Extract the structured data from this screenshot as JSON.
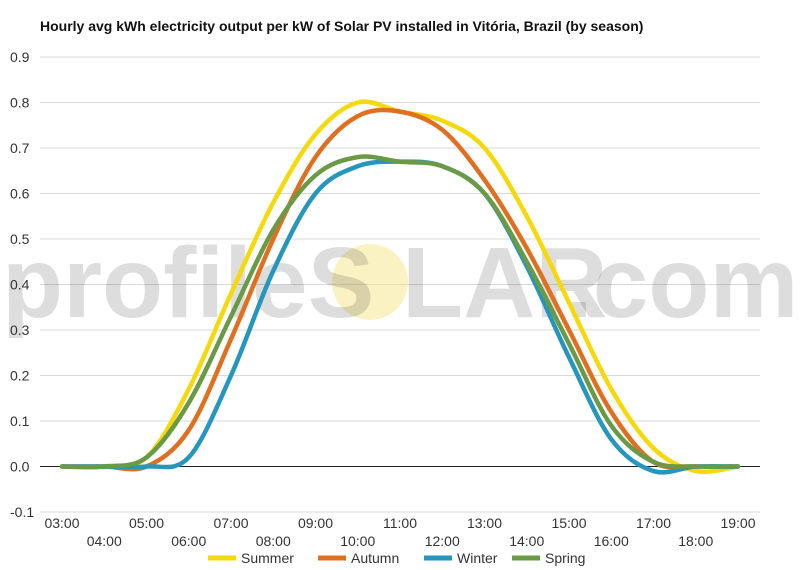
{
  "title": "Hourly avg kWh electricity output per kW of Solar PV installed in Vitória, Brazil (by season)",
  "watermark": {
    "left": "profileS",
    "middle": "LAR",
    "right": ".com"
  },
  "chart_data": {
    "type": "line",
    "x": [
      "03:00",
      "04:00",
      "05:00",
      "06:00",
      "07:00",
      "08:00",
      "09:00",
      "10:00",
      "11:00",
      "12:00",
      "13:00",
      "14:00",
      "15:00",
      "16:00",
      "17:00",
      "18:00",
      "19:00"
    ],
    "ylim": [
      -0.1,
      0.9
    ],
    "yticks": [
      "-0.1",
      "0.0",
      "0.1",
      "0.2",
      "0.3",
      "0.4",
      "0.5",
      "0.6",
      "0.7",
      "0.8",
      "0.9"
    ],
    "grid": true,
    "legend": "bottom",
    "series": [
      {
        "name": "Summer",
        "color": "#f5d90a",
        "values": [
          0.0,
          0.0,
          0.02,
          0.17,
          0.38,
          0.58,
          0.73,
          0.8,
          0.78,
          0.76,
          0.7,
          0.55,
          0.36,
          0.17,
          0.04,
          -0.01,
          0.0
        ]
      },
      {
        "name": "Autumn",
        "color": "#e07020",
        "values": [
          0.0,
          0.0,
          0.0,
          0.08,
          0.28,
          0.5,
          0.68,
          0.77,
          0.78,
          0.74,
          0.63,
          0.48,
          0.3,
          0.12,
          0.01,
          0.0,
          0.0
        ]
      },
      {
        "name": "Winter",
        "color": "#2596be",
        "values": [
          0.0,
          0.0,
          0.0,
          0.02,
          0.2,
          0.43,
          0.6,
          0.66,
          0.67,
          0.66,
          0.6,
          0.44,
          0.24,
          0.06,
          -0.01,
          0.0,
          0.0
        ]
      },
      {
        "name": "Spring",
        "color": "#6a9a45",
        "values": [
          0.0,
          0.0,
          0.02,
          0.14,
          0.33,
          0.52,
          0.64,
          0.68,
          0.67,
          0.66,
          0.6,
          0.45,
          0.27,
          0.09,
          0.01,
          0.0,
          0.0
        ]
      }
    ]
  }
}
